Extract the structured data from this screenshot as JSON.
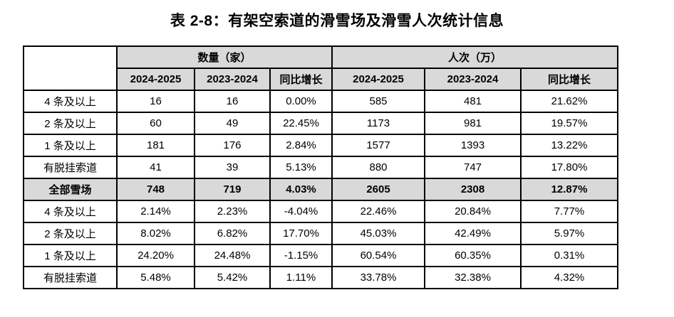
{
  "title": "表 2-8：有架空索道的滑雪场及滑雪人次统计信息",
  "colors": {
    "header_bg": "#d9d9d9",
    "total_row_bg": "#d9d9d9",
    "border": "#000000",
    "text": "#000000",
    "background": "#ffffff"
  },
  "table": {
    "corner_label": "",
    "group_headers": {
      "quantity": "数量（家）",
      "visits": "人次（万）"
    },
    "col_headers": [
      "2024-2025",
      "2023-2024",
      "同比增长",
      "2024-2025",
      "2023-2024",
      "同比增长"
    ],
    "rows": [
      {
        "label": "4 条及以上",
        "cells": [
          "16",
          "16",
          "0.00%",
          "585",
          "481",
          "21.62%"
        ]
      },
      {
        "label": "2 条及以上",
        "cells": [
          "60",
          "49",
          "22.45%",
          "1173",
          "981",
          "19.57%"
        ]
      },
      {
        "label": "1 条及以上",
        "cells": [
          "181",
          "176",
          "2.84%",
          "1577",
          "1393",
          "13.22%"
        ]
      },
      {
        "label": "有脱挂索道",
        "cells": [
          "41",
          "39",
          "5.13%",
          "880",
          "747",
          "17.80%"
        ]
      },
      {
        "label": "全部雪场",
        "cells": [
          "748",
          "719",
          "4.03%",
          "2605",
          "2308",
          "12.87%"
        ]
      },
      {
        "label": "4 条及以上",
        "cells": [
          "2.14%",
          "2.23%",
          "-4.04%",
          "22.46%",
          "20.84%",
          "7.77%"
        ]
      },
      {
        "label": "2 条及以上",
        "cells": [
          "8.02%",
          "6.82%",
          "17.70%",
          "45.03%",
          "42.49%",
          "5.97%"
        ]
      },
      {
        "label": "1 条及以上",
        "cells": [
          "24.20%",
          "24.48%",
          "-1.15%",
          "60.54%",
          "60.35%",
          "0.31%"
        ]
      },
      {
        "label": "有脱挂索道",
        "cells": [
          "5.48%",
          "5.42%",
          "1.11%",
          "33.78%",
          "32.38%",
          "4.32%"
        ]
      }
    ]
  }
}
